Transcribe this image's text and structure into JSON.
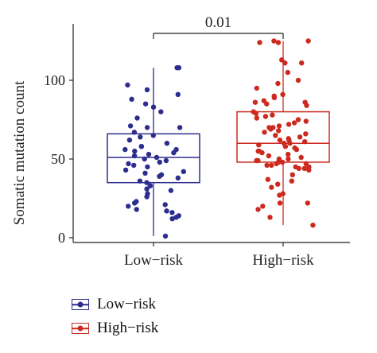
{
  "chart_data": {
    "type": "box",
    "ylabel": "Somatic mutation count",
    "xlabel": "",
    "ylim": [
      0,
      135
    ],
    "yticks": [
      0,
      50,
      100
    ],
    "categories": [
      "Low−risk",
      "High−risk"
    ],
    "annotation": "0.01",
    "grid": false,
    "legend_position": "bottom-left",
    "series": [
      {
        "name": "Low−risk",
        "color": "#2d2d8f",
        "box": {
          "min": 1,
          "q1": 35,
          "median": 51,
          "q3": 66,
          "max": 108
        },
        "points": [
          108,
          108,
          97,
          94,
          91,
          88,
          85,
          83,
          80,
          76,
          71,
          70,
          70,
          67,
          65,
          64,
          62,
          60,
          58,
          58,
          56,
          56,
          55,
          54,
          53,
          52,
          51,
          50,
          49,
          48,
          47,
          46,
          45,
          43,
          42,
          41,
          40,
          39,
          38,
          36,
          35,
          33,
          31,
          30,
          28,
          26,
          23,
          22,
          21,
          20,
          18,
          17,
          16,
          14,
          13,
          12,
          1
        ]
      },
      {
        "name": "High−risk",
        "color": "#cc2a1e",
        "box": {
          "min": 8,
          "q1": 48,
          "median": 60,
          "q3": 80,
          "max": 125
        },
        "points": [
          125,
          125,
          124,
          124,
          113,
          111,
          111,
          105,
          100,
          98,
          95,
          91,
          90,
          89,
          87,
          86,
          86,
          85,
          84,
          80,
          79,
          78,
          77,
          76,
          75,
          74,
          73,
          72,
          71,
          70,
          70,
          69,
          68,
          67,
          66,
          65,
          64,
          63,
          62,
          62,
          61,
          60,
          60,
          59,
          58,
          57,
          56,
          55,
          55,
          54,
          53,
          52,
          51,
          50,
          50,
          49,
          49,
          48,
          48,
          47,
          47,
          46,
          46,
          45,
          45,
          44,
          44,
          43,
          40,
          37,
          36,
          34,
          32,
          28,
          27,
          22,
          22,
          20,
          18,
          13,
          8
        ]
      }
    ]
  }
}
